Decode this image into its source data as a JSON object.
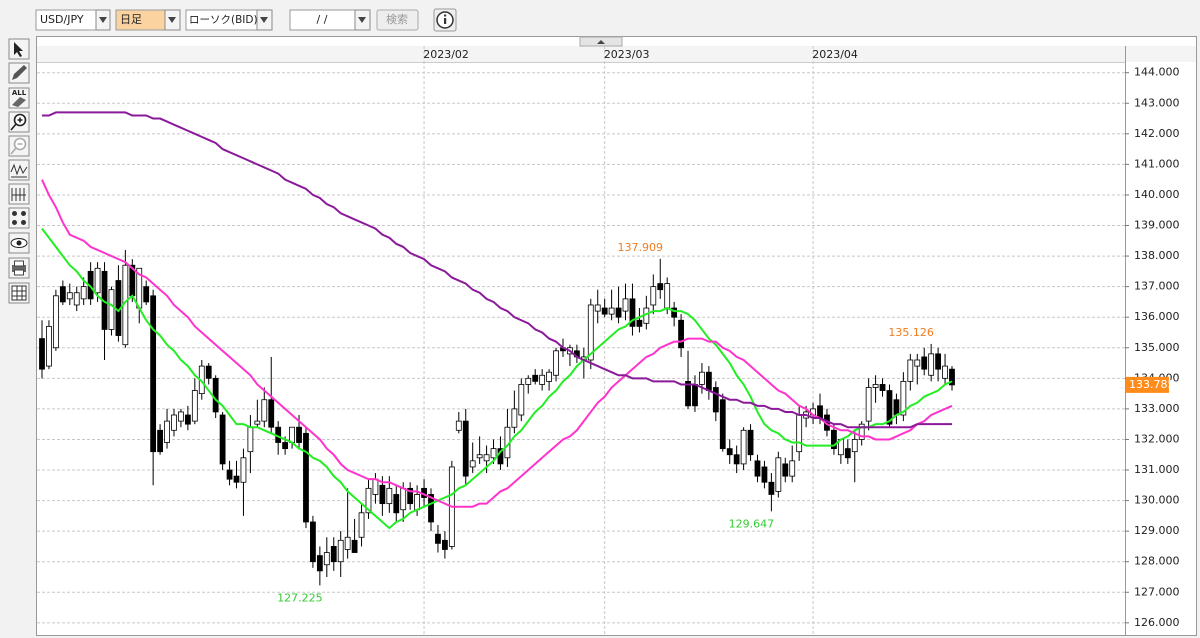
{
  "toolbar": {
    "symbol": "USD/JPY",
    "timeframe": "日足",
    "chart_kind": "ローソク(BID)",
    "date": "/ /",
    "search": "検索",
    "all_icon": "ALL"
  },
  "chart_data": {
    "type": "candlestick",
    "categories": [
      null,
      null,
      null,
      null,
      null,
      null,
      null,
      null,
      null,
      null,
      null,
      null,
      null,
      null,
      null,
      null,
      null,
      null,
      null,
      null,
      null,
      null,
      null,
      null,
      null,
      null,
      null,
      null,
      null,
      null,
      null,
      null,
      null,
      null,
      null,
      null,
      null,
      null,
      null,
      null,
      null,
      null,
      null,
      null,
      null,
      null,
      null,
      null,
      null,
      null,
      null,
      null,
      null,
      null,
      null,
      "2023/02",
      null,
      null,
      null,
      null,
      null,
      null,
      null,
      null,
      null,
      null,
      null,
      null,
      null,
      null,
      null,
      null,
      null,
      null,
      null,
      null,
      null,
      null,
      null,
      null,
      null,
      "2023/03",
      null,
      null,
      null,
      null,
      null,
      null,
      null,
      null,
      null,
      null,
      null,
      null,
      null,
      null,
      null,
      null,
      null,
      null,
      null,
      null,
      null,
      null,
      null,
      null,
      null,
      null,
      null,
      null,
      null,
      "2023/04",
      null,
      null,
      null,
      null,
      null,
      null,
      null,
      null,
      null,
      null,
      null,
      null,
      null,
      null,
      null,
      null,
      null,
      null,
      null,
      null
    ],
    "open": [
      135.3,
      134.4,
      135.0,
      137.0,
      136.6,
      136.4,
      136.6,
      137.5,
      136.8,
      137.5,
      135.6,
      137.2,
      135.1,
      137.7,
      136.3,
      137.0,
      136.7,
      132.3,
      131.9,
      132.3,
      132.6,
      132.8,
      132.6,
      133.5,
      134.4,
      134.0,
      132.8,
      131.0,
      130.8,
      130.6,
      131.6,
      132.5,
      132.6,
      133.3,
      132.4,
      131.9,
      131.9,
      132.4,
      132.2,
      129.3,
      128.2,
      127.9,
      128.5,
      128.0,
      128.4,
      128.7,
      128.8,
      129.6,
      130.2,
      130.5,
      129.9,
      130.2,
      129.7,
      130.4,
      129.7,
      130.4,
      130.2,
      128.9,
      128.7,
      128.5,
      132.3,
      132.6,
      131.1,
      131.4,
      131.3,
      131.4,
      131.7,
      131.4,
      132.4,
      132.8,
      133.8,
      134.1,
      133.8,
      133.9,
      134.1,
      135.0,
      134.8,
      134.9,
      134.6,
      134.6,
      136.2,
      136.3,
      136.1,
      136.3,
      136.2,
      136.6,
      135.9,
      135.8,
      136.4,
      137.1,
      136.3,
      136.3,
      135.9,
      133.9,
      133.8,
      133.8,
      134.2,
      133.7,
      133.3,
      131.7,
      131.5,
      131.2,
      132.3,
      131.3,
      131.1,
      130.6,
      130.3,
      131.2,
      130.8,
      131.6,
      132.7,
      132.8,
      133.1,
      132.8,
      132.3,
      131.5,
      131.7,
      131.6,
      132.0,
      132.6,
      133.7,
      133.8,
      133.6,
      133.3,
      132.8,
      133.9,
      134.4,
      134.7,
      134.1,
      134.8,
      134.0,
      134.3
    ],
    "high": [
      135.9,
      135.9,
      136.9,
      137.2,
      137.1,
      137.0,
      137.3,
      137.8,
      137.8,
      137.8,
      137.0,
      137.7,
      138.2,
      137.9,
      137.6,
      137.2,
      136.9,
      132.5,
      133.0,
      133.0,
      133.0,
      133.1,
      134.0,
      134.6,
      134.5,
      134.1,
      132.9,
      131.3,
      131.3,
      131.7,
      132.8,
      133.3,
      133.7,
      134.7,
      132.6,
      132.1,
      132.4,
      132.8,
      132.4,
      129.5,
      128.5,
      128.8,
      128.8,
      129.0,
      130.4,
      129.4,
      129.9,
      130.7,
      130.9,
      130.8,
      130.8,
      130.5,
      130.6,
      130.6,
      130.5,
      130.7,
      130.4,
      129.2,
      129.0,
      131.3,
      132.9,
      133.0,
      131.9,
      132.1,
      131.8,
      132.0,
      132.1,
      133.0,
      133.6,
      134.0,
      134.1,
      134.3,
      134.3,
      134.3,
      135.0,
      135.3,
      135.1,
      135.1,
      135.0,
      136.6,
      136.9,
      136.6,
      136.9,
      137.0,
      137.1,
      137.1,
      136.3,
      136.7,
      137.4,
      137.909,
      137.3,
      136.5,
      136.1,
      134.9,
      134.1,
      134.5,
      134.4,
      133.9,
      133.5,
      132.0,
      131.8,
      132.4,
      132.5,
      131.5,
      131.3,
      130.9,
      131.6,
      131.4,
      131.8,
      133.1,
      133.1,
      133.2,
      133.5,
      133.0,
      132.5,
      132.0,
      132.0,
      132.3,
      132.6,
      134.0,
      134.1,
      134.0,
      133.8,
      133.5,
      134.2,
      134.8,
      134.8,
      135.0,
      135.126,
      135.0,
      134.8,
      134.4
    ],
    "low": [
      134.0,
      134.3,
      134.9,
      136.4,
      136.4,
      136.2,
      136.4,
      136.4,
      136.5,
      134.6,
      135.4,
      135.2,
      135.0,
      136.5,
      135.8,
      136.4,
      130.5,
      131.5,
      131.7,
      132.1,
      132.4,
      132.3,
      132.5,
      133.3,
      133.8,
      132.7,
      131.0,
      130.5,
      130.4,
      129.5,
      130.9,
      132.4,
      132.4,
      132.2,
      131.5,
      131.5,
      131.7,
      131.7,
      129.1,
      127.8,
      127.225,
      127.5,
      127.7,
      127.5,
      128.1,
      128.3,
      128.5,
      129.4,
      129.9,
      129.5,
      129.6,
      129.3,
      129.3,
      129.7,
      129.5,
      129.8,
      129.0,
      128.3,
      128.1,
      128.4,
      132.2,
      130.5,
      130.9,
      131.2,
      130.9,
      131.2,
      131.0,
      131.1,
      132.2,
      132.6,
      133.5,
      133.8,
      133.6,
      133.6,
      133.9,
      134.7,
      134.4,
      134.5,
      134.0,
      134.3,
      135.8,
      136.0,
      135.9,
      135.8,
      135.9,
      135.4,
      135.5,
      135.6,
      136.1,
      136.6,
      136.1,
      135.7,
      134.7,
      133.0,
      132.9,
      133.5,
      133.3,
      132.6,
      131.6,
      131.2,
      130.9,
      131.0,
      131.3,
      130.6,
      130.4,
      129.647,
      130.1,
      130.6,
      130.6,
      131.3,
      132.4,
      132.5,
      132.5,
      132.1,
      131.5,
      131.2,
      131.2,
      130.6,
      131.8,
      132.3,
      133.2,
      133.4,
      132.4,
      132.5,
      132.6,
      133.6,
      133.8,
      134.1,
      133.9,
      133.9,
      133.8,
      133.6
    ],
    "close": [
      134.3,
      135.7,
      136.7,
      136.5,
      136.8,
      136.8,
      137.0,
      136.6,
      137.6,
      135.6,
      136.9,
      135.4,
      137.7,
      136.7,
      137.6,
      136.5,
      131.6,
      131.6,
      132.6,
      132.8,
      132.9,
      132.5,
      133.6,
      134.4,
      134.0,
      132.9,
      131.2,
      130.7,
      130.6,
      131.4,
      132.4,
      132.6,
      133.3,
      132.4,
      131.9,
      131.7,
      132.4,
      131.9,
      129.3,
      128.0,
      127.7,
      128.3,
      128.0,
      128.7,
      128.8,
      128.3,
      129.6,
      130.4,
      130.7,
      129.9,
      130.4,
      129.6,
      130.4,
      129.9,
      130.2,
      130.1,
      129.3,
      128.6,
      128.4,
      131.1,
      132.6,
      130.8,
      131.3,
      131.5,
      131.5,
      131.7,
      131.2,
      132.4,
      133.0,
      133.8,
      134.0,
      133.9,
      134.1,
      134.2,
      134.9,
      134.9,
      135.0,
      134.7,
      134.7,
      136.4,
      136.4,
      136.1,
      136.3,
      136.0,
      136.6,
      135.7,
      135.7,
      136.3,
      137.0,
      136.9,
      137.1,
      136.0,
      135.0,
      133.1,
      133.1,
      134.2,
      133.6,
      132.9,
      131.7,
      131.5,
      131.2,
      132.3,
      131.5,
      130.8,
      130.6,
      130.2,
      131.4,
      130.8,
      131.3,
      132.8,
      132.9,
      133.0,
      132.7,
      132.3,
      131.7,
      132.0,
      131.4,
      132.0,
      132.5,
      133.7,
      133.8,
      133.6,
      132.5,
      132.8,
      133.9,
      134.6,
      134.6,
      134.3,
      134.8,
      134.3,
      134.4,
      133.785
    ],
    "up_color": "#ffffff",
    "down_color": "#000000",
    "series": [
      {
        "color": "#22ee22",
        "values": [
          138.9,
          138.6,
          138.3,
          138.0,
          137.7,
          137.5,
          137.2,
          137.0,
          136.7,
          136.5,
          136.4,
          136.2,
          136.5,
          136.7,
          136.3,
          135.9,
          135.6,
          135.4,
          135.1,
          134.9,
          134.6,
          134.4,
          134.1,
          133.9,
          133.6,
          133.3,
          133.1,
          132.8,
          132.5,
          132.5,
          132.4,
          132.4,
          132.3,
          132.2,
          132.1,
          132.0,
          131.9,
          131.7,
          131.6,
          131.4,
          131.3,
          131.1,
          130.8,
          130.6,
          130.3,
          130.1,
          129.9,
          129.7,
          129.5,
          129.3,
          129.1,
          129.3,
          129.4,
          129.6,
          129.7,
          129.8,
          129.9,
          130.0,
          130.1,
          130.2,
          130.4,
          130.5,
          130.7,
          130.9,
          131.1,
          131.3,
          131.6,
          131.8,
          132.1,
          132.3,
          132.6,
          132.9,
          133.1,
          133.4,
          133.6,
          133.9,
          134.1,
          134.4,
          134.6,
          134.8,
          135.0,
          135.2,
          135.4,
          135.6,
          135.7,
          135.9,
          136.0,
          136.1,
          136.2,
          136.2,
          136.3,
          136.2,
          136.2,
          136.1,
          135.9,
          135.6,
          135.3,
          135.1,
          134.8,
          134.5,
          134.1,
          133.8,
          133.4,
          132.9,
          132.5,
          132.3,
          132.2,
          132.0,
          131.9,
          131.9,
          131.8,
          131.8,
          131.8,
          131.8,
          131.8,
          132.0,
          132.1,
          132.3,
          132.4,
          132.4,
          132.5,
          132.5,
          132.6,
          132.8,
          132.9,
          133.1,
          133.2,
          133.4,
          133.5,
          133.6,
          133.8,
          133.9
        ]
      },
      {
        "color": "#ff33cc",
        "values": [
          140.5,
          140.0,
          139.6,
          139.1,
          138.7,
          138.6,
          138.5,
          138.3,
          138.2,
          138.1,
          138.0,
          137.9,
          137.8,
          137.6,
          137.4,
          137.3,
          137.1,
          136.9,
          136.7,
          136.4,
          136.2,
          136.0,
          135.7,
          135.5,
          135.3,
          135.1,
          134.9,
          134.7,
          134.5,
          134.3,
          134.1,
          133.8,
          133.6,
          133.4,
          133.2,
          133.0,
          132.8,
          132.6,
          132.4,
          132.2,
          132.0,
          131.7,
          131.5,
          131.2,
          131.0,
          130.9,
          130.8,
          130.7,
          130.7,
          130.6,
          130.6,
          130.5,
          130.4,
          130.3,
          130.3,
          130.2,
          130.1,
          130.0,
          129.9,
          129.8,
          129.8,
          129.8,
          129.8,
          129.9,
          129.9,
          130.1,
          130.3,
          130.4,
          130.6,
          130.8,
          131.0,
          131.2,
          131.4,
          131.6,
          131.8,
          132.0,
          132.1,
          132.3,
          132.6,
          132.9,
          133.2,
          133.4,
          133.7,
          133.9,
          134.1,
          134.3,
          134.5,
          134.7,
          134.8,
          135.0,
          135.1,
          135.2,
          135.2,
          135.3,
          135.3,
          135.3,
          135.2,
          135.2,
          135.0,
          134.9,
          134.7,
          134.6,
          134.4,
          134.2,
          134.0,
          133.8,
          133.6,
          133.5,
          133.3,
          133.1,
          133.0,
          132.8,
          132.7,
          132.5,
          132.4,
          132.3,
          132.3,
          132.2,
          132.1,
          132.1,
          132.0,
          132.0,
          132.0,
          132.1,
          132.2,
          132.3,
          132.5,
          132.6,
          132.8,
          132.9,
          133.0,
          133.1
        ]
      },
      {
        "color": "#8b1a9b",
        "values": [
          142.6,
          142.6,
          142.7,
          142.7,
          142.7,
          142.7,
          142.7,
          142.7,
          142.7,
          142.7,
          142.7,
          142.7,
          142.7,
          142.6,
          142.6,
          142.6,
          142.5,
          142.5,
          142.4,
          142.3,
          142.2,
          142.1,
          142.0,
          141.9,
          141.8,
          141.7,
          141.5,
          141.4,
          141.3,
          141.2,
          141.1,
          141.0,
          140.9,
          140.8,
          140.7,
          140.5,
          140.4,
          140.3,
          140.2,
          140.0,
          139.9,
          139.7,
          139.6,
          139.4,
          139.3,
          139.2,
          139.1,
          139.0,
          138.9,
          138.7,
          138.6,
          138.4,
          138.3,
          138.1,
          138.0,
          137.9,
          137.7,
          137.6,
          137.5,
          137.3,
          137.2,
          137.1,
          136.9,
          136.8,
          136.6,
          136.5,
          136.3,
          136.2,
          136.0,
          135.9,
          135.8,
          135.6,
          135.5,
          135.3,
          135.2,
          135.0,
          134.9,
          134.7,
          134.6,
          134.5,
          134.4,
          134.3,
          134.2,
          134.1,
          134.1,
          134.0,
          134.0,
          134.0,
          133.9,
          133.9,
          133.9,
          133.9,
          133.8,
          133.8,
          133.8,
          133.7,
          133.6,
          133.5,
          133.4,
          133.3,
          133.3,
          133.2,
          133.2,
          133.1,
          133.1,
          133.0,
          133.0,
          132.9,
          132.9,
          132.8,
          132.8,
          132.7,
          132.7,
          132.6,
          132.5,
          132.5,
          132.4,
          132.4,
          132.4,
          132.4,
          132.4,
          132.4,
          132.4,
          132.4,
          132.4,
          132.4,
          132.5,
          132.5,
          132.5,
          132.5,
          132.5,
          132.5
        ]
      }
    ],
    "ylim": [
      125.7,
      144.35
    ],
    "yticks": [
      {
        "value": 126,
        "label": "126.000"
      },
      {
        "value": 127,
        "label": "127.000"
      },
      {
        "value": 128,
        "label": "128.000"
      },
      {
        "value": 129,
        "label": "129.000"
      },
      {
        "value": 130,
        "label": "130.000"
      },
      {
        "value": 131,
        "label": "131.000"
      },
      {
        "value": 132,
        "label": "132.000"
      },
      {
        "value": 133,
        "label": "133.000"
      },
      {
        "value": 134,
        "label": "134.000"
      },
      {
        "value": 135,
        "label": "135.000"
      },
      {
        "value": 136,
        "label": "136.000"
      },
      {
        "value": 137,
        "label": "137.000"
      },
      {
        "value": 138,
        "label": "138.000"
      },
      {
        "value": 139,
        "label": "139.000"
      },
      {
        "value": 140,
        "label": "140.000"
      },
      {
        "value": 141,
        "label": "141.000"
      },
      {
        "value": 142,
        "label": "142.000"
      },
      {
        "value": 143,
        "label": "143.000"
      },
      {
        "value": 144,
        "label": "144.000"
      }
    ],
    "grid": true,
    "last_price_color": "#ff8c1a",
    "annotations": [
      {
        "value": 137.909,
        "color": "#f07d1e"
      },
      {
        "value": 127.225,
        "color": "#33cc33"
      },
      {
        "value": 129.647,
        "color": "#33cc33"
      },
      {
        "value": 135.126,
        "color": "#f07d1e"
      }
    ]
  }
}
